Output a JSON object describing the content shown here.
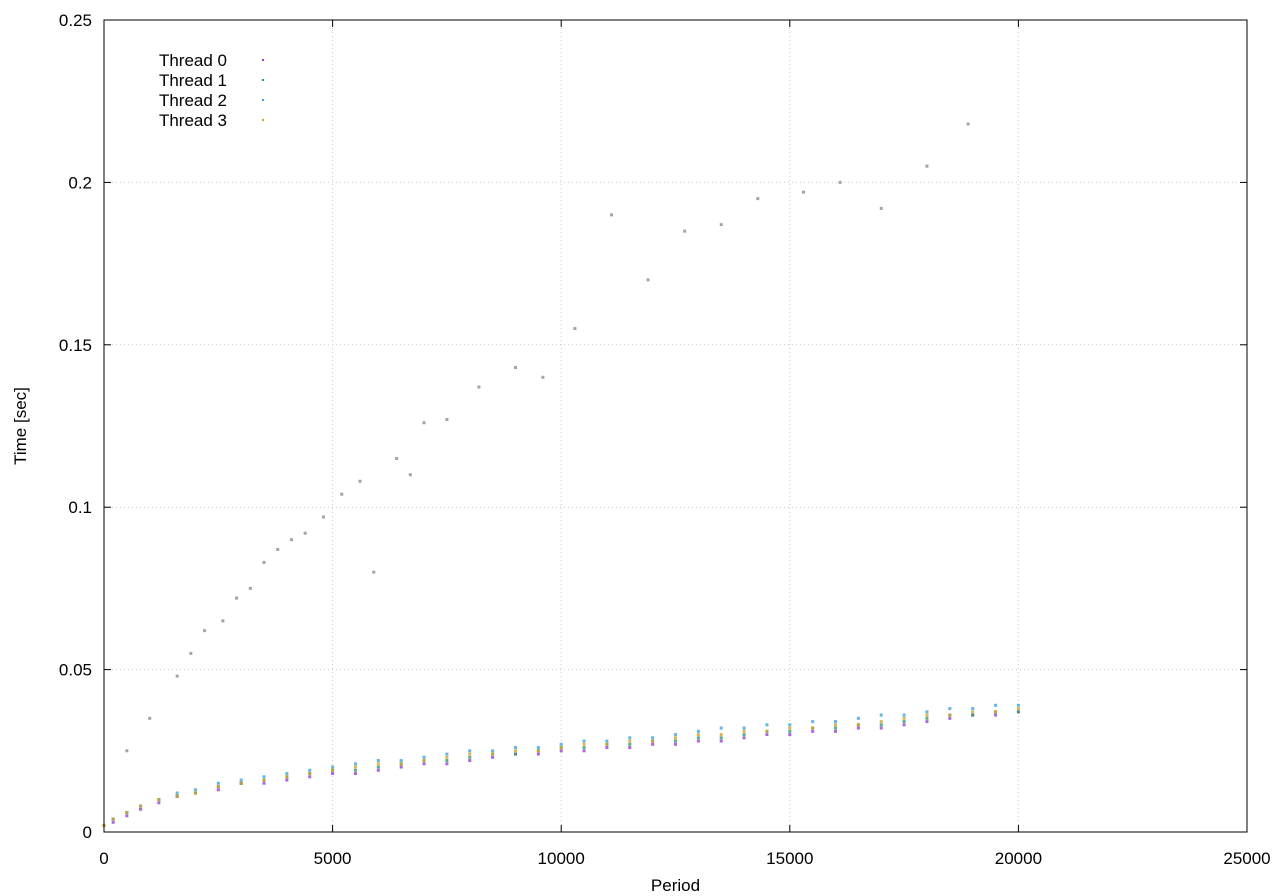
{
  "chart_data": {
    "type": "scatter",
    "title": "",
    "xlabel": "Period",
    "ylabel": "Time [sec]",
    "xlim": [
      0,
      25000
    ],
    "ylim": [
      0,
      0.25
    ],
    "xticks": [
      0,
      5000,
      10000,
      15000,
      20000,
      25000
    ],
    "xtick_labels": [
      "0",
      "5000",
      "10000",
      "15000",
      "20000",
      "25000"
    ],
    "yticks": [
      0,
      0.05,
      0.1,
      0.15,
      0.2,
      0.25
    ],
    "ytick_labels": [
      "0",
      "0.05",
      "0.1",
      "0.15",
      "0.2",
      "0.25"
    ],
    "grid": true,
    "legend_position": "top-left",
    "series": [
      {
        "name": "Thread 0",
        "color": "#9b3fd4",
        "marker": "dot",
        "x": [
          0,
          200,
          500,
          800,
          1200,
          1600,
          2000,
          2500,
          3000,
          3500,
          4000,
          4500,
          5000,
          5500,
          6000,
          6500,
          7000,
          7500,
          8000,
          8500,
          9000,
          9500,
          10000,
          10500,
          11000,
          11500,
          12000,
          12500,
          13000,
          13500,
          14000,
          14500,
          15000,
          15500,
          16000,
          16500,
          17000,
          17500,
          18000,
          18500,
          19000,
          19500,
          20000
        ],
        "y": [
          0.002,
          0.003,
          0.005,
          0.007,
          0.009,
          0.011,
          0.012,
          0.013,
          0.015,
          0.015,
          0.016,
          0.017,
          0.018,
          0.018,
          0.019,
          0.02,
          0.021,
          0.021,
          0.022,
          0.023,
          0.024,
          0.024,
          0.025,
          0.025,
          0.026,
          0.026,
          0.027,
          0.027,
          0.028,
          0.028,
          0.029,
          0.03,
          0.03,
          0.031,
          0.031,
          0.032,
          0.032,
          0.033,
          0.034,
          0.035,
          0.036,
          0.036,
          0.037
        ]
      },
      {
        "name": "Thread 1",
        "color": "#2e9e6e",
        "marker": "dot",
        "x": [
          0,
          200,
          500,
          800,
          1200,
          1600,
          2000,
          2500,
          3000,
          3500,
          4000,
          4500,
          5000,
          5500,
          6000,
          6500,
          7000,
          7500,
          8000,
          8500,
          9000,
          9500,
          10000,
          10500,
          11000,
          11500,
          12000,
          12500,
          13000,
          13500,
          14000,
          14500,
          15000,
          15500,
          16000,
          16500,
          17000,
          17500,
          18000,
          18500,
          19000,
          19500,
          20000
        ],
        "y": [
          0.002,
          0.004,
          0.006,
          0.008,
          0.01,
          0.011,
          0.012,
          0.014,
          0.015,
          0.016,
          0.017,
          0.018,
          0.019,
          0.019,
          0.02,
          0.021,
          0.022,
          0.022,
          0.023,
          0.024,
          0.024,
          0.025,
          0.026,
          0.026,
          0.027,
          0.027,
          0.028,
          0.028,
          0.029,
          0.029,
          0.03,
          0.031,
          0.031,
          0.032,
          0.032,
          0.033,
          0.033,
          0.034,
          0.035,
          0.036,
          0.036,
          0.037,
          0.037
        ]
      },
      {
        "name": "Thread 2",
        "color": "#3aa6d9",
        "marker": "dot",
        "x": [
          0,
          200,
          500,
          800,
          1200,
          1600,
          2000,
          2500,
          3000,
          3500,
          4000,
          4500,
          5000,
          5500,
          6000,
          6500,
          7000,
          7500,
          8000,
          8500,
          9000,
          9500,
          10000,
          10500,
          11000,
          11500,
          12000,
          12500,
          13000,
          13500,
          14000,
          14500,
          15000,
          15500,
          16000,
          16500,
          17000,
          17500,
          18000,
          18500,
          19000,
          19500,
          20000
        ],
        "y": [
          0.002,
          0.004,
          0.006,
          0.008,
          0.01,
          0.012,
          0.013,
          0.015,
          0.016,
          0.017,
          0.018,
          0.019,
          0.02,
          0.021,
          0.022,
          0.022,
          0.023,
          0.024,
          0.025,
          0.025,
          0.026,
          0.026,
          0.027,
          0.028,
          0.028,
          0.029,
          0.029,
          0.03,
          0.031,
          0.032,
          0.032,
          0.033,
          0.033,
          0.034,
          0.034,
          0.035,
          0.036,
          0.036,
          0.037,
          0.038,
          0.038,
          0.039,
          0.039
        ]
      },
      {
        "name": "Thread 3",
        "color": "#d4a326",
        "marker": "dot",
        "x": [
          0,
          200,
          500,
          800,
          1200,
          1600,
          2000,
          2500,
          3000,
          3500,
          4000,
          4500,
          5000,
          5500,
          6000,
          6500,
          7000,
          7500,
          8000,
          8500,
          9000,
          9500,
          10000,
          10500,
          11000,
          11500,
          12000,
          12500,
          13000,
          13500,
          14000,
          14500,
          15000,
          15500,
          16000,
          16500,
          17000,
          17500,
          18000,
          18500,
          19000,
          19500,
          20000
        ],
        "y": [
          0.002,
          0.004,
          0.006,
          0.008,
          0.01,
          0.011,
          0.012,
          0.014,
          0.015,
          0.016,
          0.017,
          0.018,
          0.019,
          0.02,
          0.021,
          0.021,
          0.022,
          0.023,
          0.024,
          0.024,
          0.025,
          0.025,
          0.026,
          0.027,
          0.027,
          0.028,
          0.028,
          0.029,
          0.03,
          0.03,
          0.031,
          0.031,
          0.032,
          0.032,
          0.033,
          0.033,
          0.034,
          0.035,
          0.036,
          0.036,
          0.037,
          0.037,
          0.038
        ]
      }
    ],
    "outliers": {
      "color": "#9a9a9a",
      "x": [
        500,
        1000,
        1600,
        1900,
        2200,
        2600,
        2900,
        3200,
        3500,
        3800,
        4100,
        4400,
        4800,
        5200,
        5600,
        5900,
        6400,
        6700,
        7000,
        7500,
        8200,
        9000,
        9600,
        10300,
        11100,
        11900,
        12700,
        13500,
        14300,
        15300,
        16100,
        17000,
        18000,
        18900
      ],
      "y": [
        0.025,
        0.035,
        0.048,
        0.055,
        0.062,
        0.065,
        0.072,
        0.075,
        0.083,
        0.087,
        0.09,
        0.092,
        0.097,
        0.104,
        0.108,
        0.08,
        0.115,
        0.11,
        0.126,
        0.127,
        0.137,
        0.143,
        0.14,
        0.155,
        0.19,
        0.17,
        0.185,
        0.187,
        0.195,
        0.197,
        0.2,
        0.192,
        0.205,
        0.218
      ]
    }
  }
}
